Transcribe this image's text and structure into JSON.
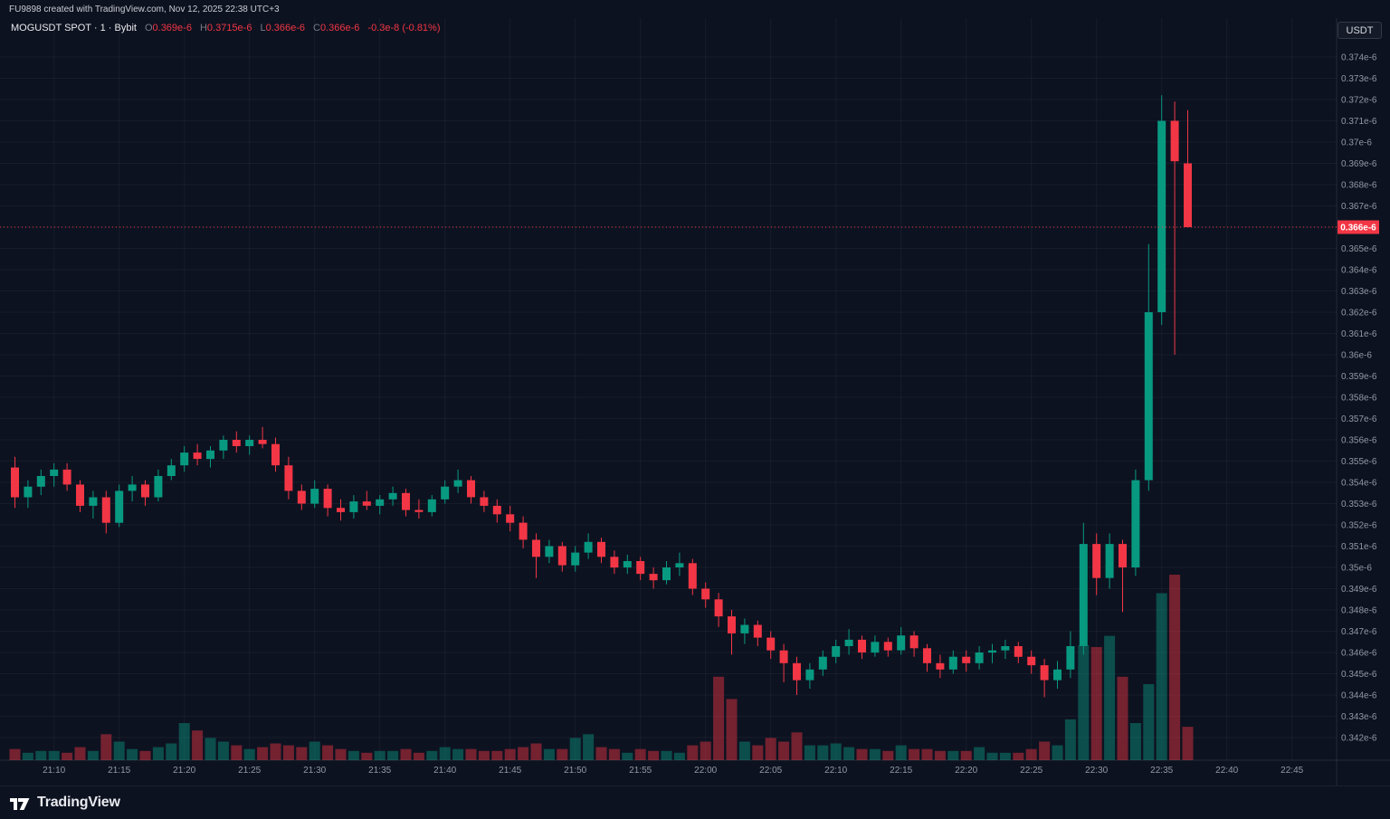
{
  "header": {
    "attribution": "FU9898 created with TradingView.com, Nov 12, 2025 22:38 UTC+3"
  },
  "symbol_bar": {
    "title": "MOGUSDT SPOT · 1 · Bybit",
    "ohlc": [
      {
        "label": "O",
        "value": "0.369e-6"
      },
      {
        "label": "H",
        "value": "0.3715e-6"
      },
      {
        "label": "L",
        "value": "0.366e-6"
      },
      {
        "label": "C",
        "value": "0.366e-6"
      }
    ],
    "change": "-0.3e-8 (-0.81%)"
  },
  "price_axis_button": {
    "label": "USDT"
  },
  "footer": {
    "brand": "TradingView"
  },
  "colors": {
    "background": "#0d1220",
    "up": "#089981",
    "down": "#f23645",
    "axis_text": "#9298a3",
    "axis_border": "rgba(255,255,255,0.10)",
    "grid": "rgba(190,200,220,0.06)",
    "last_price_line": "#f23645",
    "last_price_bg": "#f23645",
    "last_price_text": "#ffffff"
  },
  "chart_data": {
    "type": "candlestick",
    "symbol": "MOGUSDT",
    "market": "SPOT",
    "exchange": "Bybit",
    "interval": "1",
    "quote_currency": "USDT",
    "price_unit": "x1e-6 USDT",
    "legend": "candles colored up/down, volume histogram at bottom",
    "y_axis": {
      "min": 0.342,
      "max": 0.374,
      "tick_step": 0.001,
      "suffix": "e-6",
      "ticks": [
        0.374,
        0.373,
        0.372,
        0.371,
        0.37,
        0.369,
        0.368,
        0.367,
        0.366,
        0.365,
        0.364,
        0.363,
        0.362,
        0.361,
        0.36,
        0.359,
        0.358,
        0.357,
        0.356,
        0.355,
        0.354,
        0.353,
        0.352,
        0.351,
        0.35,
        0.349,
        0.348,
        0.347,
        0.346,
        0.345,
        0.344,
        0.343,
        0.342
      ]
    },
    "x_axis": {
      "ticks": [
        "21:10",
        "21:15",
        "21:20",
        "21:25",
        "21:30",
        "21:35",
        "21:40",
        "21:45",
        "21:50",
        "21:55",
        "22:00",
        "22:05",
        "22:10",
        "22:15",
        "22:20",
        "22:25",
        "22:30",
        "22:35",
        "22:40",
        "22:45"
      ]
    },
    "last_price": {
      "value": 0.366,
      "label": "0.366e-6"
    },
    "volume_scale_max": 100,
    "candles_format": [
      "time",
      "open",
      "high",
      "low",
      "close",
      "volume"
    ],
    "candles": [
      [
        "21:07",
        0.3547,
        0.3552,
        0.3528,
        0.3533,
        6
      ],
      [
        "21:08",
        0.3533,
        0.3541,
        0.3528,
        0.3538,
        4
      ],
      [
        "21:09",
        0.3538,
        0.3546,
        0.3534,
        0.3543,
        5
      ],
      [
        "21:10",
        0.3543,
        0.3549,
        0.3538,
        0.3546,
        5
      ],
      [
        "21:11",
        0.3546,
        0.3549,
        0.3536,
        0.3539,
        4
      ],
      [
        "21:12",
        0.3539,
        0.3541,
        0.3526,
        0.3529,
        7
      ],
      [
        "21:13",
        0.3529,
        0.3536,
        0.3523,
        0.3533,
        5
      ],
      [
        "21:14",
        0.3533,
        0.3536,
        0.3516,
        0.3521,
        14
      ],
      [
        "21:15",
        0.3521,
        0.3539,
        0.3519,
        0.3536,
        10
      ],
      [
        "21:16",
        0.3536,
        0.3543,
        0.3531,
        0.3539,
        6
      ],
      [
        "21:17",
        0.3539,
        0.3541,
        0.3529,
        0.3533,
        5
      ],
      [
        "21:18",
        0.3533,
        0.3546,
        0.3531,
        0.3543,
        7
      ],
      [
        "21:19",
        0.3543,
        0.3551,
        0.3541,
        0.3548,
        9
      ],
      [
        "21:20",
        0.3548,
        0.3557,
        0.3545,
        0.3554,
        20
      ],
      [
        "21:21",
        0.3554,
        0.3558,
        0.3548,
        0.3551,
        16
      ],
      [
        "21:22",
        0.3551,
        0.3557,
        0.3547,
        0.3555,
        12
      ],
      [
        "21:23",
        0.3555,
        0.3562,
        0.3551,
        0.356,
        10
      ],
      [
        "21:24",
        0.356,
        0.3564,
        0.3554,
        0.3557,
        8
      ],
      [
        "21:25",
        0.3557,
        0.3562,
        0.3553,
        0.356,
        6
      ],
      [
        "21:26",
        0.356,
        0.3566,
        0.3556,
        0.3558,
        7
      ],
      [
        "21:27",
        0.3558,
        0.3561,
        0.3545,
        0.3548,
        9
      ],
      [
        "21:28",
        0.3548,
        0.3552,
        0.3532,
        0.3536,
        8
      ],
      [
        "21:29",
        0.3536,
        0.3539,
        0.3527,
        0.353,
        7
      ],
      [
        "21:30",
        0.353,
        0.3541,
        0.3528,
        0.3537,
        10
      ],
      [
        "21:31",
        0.3537,
        0.3539,
        0.3524,
        0.3528,
        8
      ],
      [
        "21:32",
        0.3528,
        0.3532,
        0.3522,
        0.3526,
        6
      ],
      [
        "21:33",
        0.3526,
        0.3534,
        0.3523,
        0.3531,
        5
      ],
      [
        "21:34",
        0.3531,
        0.3536,
        0.3527,
        0.3529,
        4
      ],
      [
        "21:35",
        0.3529,
        0.3534,
        0.3525,
        0.3532,
        5
      ],
      [
        "21:36",
        0.3532,
        0.3538,
        0.3529,
        0.3535,
        5
      ],
      [
        "21:37",
        0.3535,
        0.3537,
        0.3524,
        0.3527,
        6
      ],
      [
        "21:38",
        0.3527,
        0.3532,
        0.3523,
        0.3526,
        4
      ],
      [
        "21:39",
        0.3526,
        0.3534,
        0.3524,
        0.3532,
        5
      ],
      [
        "21:40",
        0.3532,
        0.3541,
        0.353,
        0.3538,
        7
      ],
      [
        "21:41",
        0.3538,
        0.3546,
        0.3535,
        0.3541,
        6
      ],
      [
        "21:42",
        0.3541,
        0.3543,
        0.353,
        0.3533,
        6
      ],
      [
        "21:43",
        0.3533,
        0.3536,
        0.3526,
        0.3529,
        5
      ],
      [
        "21:44",
        0.3529,
        0.3532,
        0.3521,
        0.3525,
        5
      ],
      [
        "21:45",
        0.3525,
        0.3529,
        0.3517,
        0.3521,
        6
      ],
      [
        "21:46",
        0.3521,
        0.3524,
        0.3509,
        0.3513,
        7
      ],
      [
        "21:47",
        0.3513,
        0.3516,
        0.3495,
        0.3505,
        9
      ],
      [
        "21:48",
        0.3505,
        0.3513,
        0.3502,
        0.351,
        6
      ],
      [
        "21:49",
        0.351,
        0.3512,
        0.3498,
        0.3501,
        6
      ],
      [
        "21:50",
        0.3501,
        0.351,
        0.3498,
        0.3507,
        12
      ],
      [
        "21:51",
        0.3507,
        0.3516,
        0.3504,
        0.3512,
        14
      ],
      [
        "21:52",
        0.3512,
        0.3514,
        0.3502,
        0.3505,
        7
      ],
      [
        "21:53",
        0.3505,
        0.3508,
        0.3497,
        0.35,
        6
      ],
      [
        "21:54",
        0.35,
        0.3506,
        0.3497,
        0.3503,
        4
      ],
      [
        "21:55",
        0.3503,
        0.3505,
        0.3494,
        0.3497,
        6
      ],
      [
        "21:56",
        0.3497,
        0.35,
        0.349,
        0.3494,
        5
      ],
      [
        "21:57",
        0.3494,
        0.3503,
        0.3492,
        0.35,
        5
      ],
      [
        "21:58",
        0.35,
        0.3507,
        0.3496,
        0.3502,
        4
      ],
      [
        "21:59",
        0.3502,
        0.3504,
        0.3487,
        0.349,
        8
      ],
      [
        "22:00",
        0.349,
        0.3493,
        0.3481,
        0.3485,
        10
      ],
      [
        "22:01",
        0.3485,
        0.3488,
        0.3472,
        0.3477,
        45
      ],
      [
        "22:02",
        0.3477,
        0.348,
        0.3459,
        0.3469,
        33
      ],
      [
        "22:03",
        0.3469,
        0.3476,
        0.3464,
        0.3473,
        10
      ],
      [
        "22:04",
        0.3473,
        0.3475,
        0.3463,
        0.3467,
        8
      ],
      [
        "22:05",
        0.3467,
        0.347,
        0.3457,
        0.3461,
        12
      ],
      [
        "22:06",
        0.3461,
        0.3464,
        0.3446,
        0.3455,
        10
      ],
      [
        "22:07",
        0.3455,
        0.3458,
        0.344,
        0.3447,
        15
      ],
      [
        "22:08",
        0.3447,
        0.3455,
        0.3443,
        0.3452,
        8
      ],
      [
        "22:09",
        0.3452,
        0.3461,
        0.3449,
        0.3458,
        8
      ],
      [
        "22:10",
        0.3458,
        0.3466,
        0.3455,
        0.3463,
        9
      ],
      [
        "22:11",
        0.3463,
        0.3471,
        0.3459,
        0.3466,
        7
      ],
      [
        "22:12",
        0.3466,
        0.3468,
        0.3457,
        0.346,
        6
      ],
      [
        "22:13",
        0.346,
        0.3468,
        0.3458,
        0.3465,
        6
      ],
      [
        "22:14",
        0.3465,
        0.3467,
        0.3458,
        0.3461,
        5
      ],
      [
        "22:15",
        0.3461,
        0.3472,
        0.3459,
        0.3468,
        8
      ],
      [
        "22:16",
        0.3468,
        0.347,
        0.3458,
        0.3462,
        6
      ],
      [
        "22:17",
        0.3462,
        0.3464,
        0.3451,
        0.3455,
        6
      ],
      [
        "22:18",
        0.3455,
        0.3459,
        0.3448,
        0.3452,
        5
      ],
      [
        "22:19",
        0.3452,
        0.3461,
        0.345,
        0.3458,
        5
      ],
      [
        "22:20",
        0.3458,
        0.3461,
        0.3451,
        0.3455,
        5
      ],
      [
        "22:21",
        0.3455,
        0.3463,
        0.3452,
        0.346,
        7
      ],
      [
        "22:22",
        0.346,
        0.3464,
        0.3455,
        0.3461,
        4
      ],
      [
        "22:23",
        0.3461,
        0.3466,
        0.3457,
        0.3463,
        4
      ],
      [
        "22:24",
        0.3463,
        0.3465,
        0.3455,
        0.3458,
        4
      ],
      [
        "22:25",
        0.3458,
        0.3461,
        0.345,
        0.3454,
        6
      ],
      [
        "22:26",
        0.3454,
        0.3457,
        0.3439,
        0.3447,
        10
      ],
      [
        "22:27",
        0.3447,
        0.3456,
        0.3443,
        0.3452,
        8
      ],
      [
        "22:28",
        0.3452,
        0.347,
        0.3448,
        0.3463,
        22
      ],
      [
        "22:29",
        0.3463,
        0.3521,
        0.3459,
        0.3511,
        62
      ],
      [
        "22:30",
        0.3511,
        0.3516,
        0.3487,
        0.3495,
        61
      ],
      [
        "22:31",
        0.3495,
        0.3516,
        0.349,
        0.3511,
        67
      ],
      [
        "22:32",
        0.3511,
        0.3513,
        0.3479,
        0.35,
        45
      ],
      [
        "22:33",
        0.35,
        0.3546,
        0.3496,
        0.3541,
        20
      ],
      [
        "22:34",
        0.3541,
        0.3652,
        0.3536,
        0.362,
        41
      ],
      [
        "22:35",
        0.362,
        0.3722,
        0.3614,
        0.371,
        90
      ],
      [
        "22:36",
        0.371,
        0.3719,
        0.36,
        0.3691,
        100
      ],
      [
        "22:37",
        0.369,
        0.3715,
        0.366,
        0.366,
        18
      ]
    ]
  }
}
